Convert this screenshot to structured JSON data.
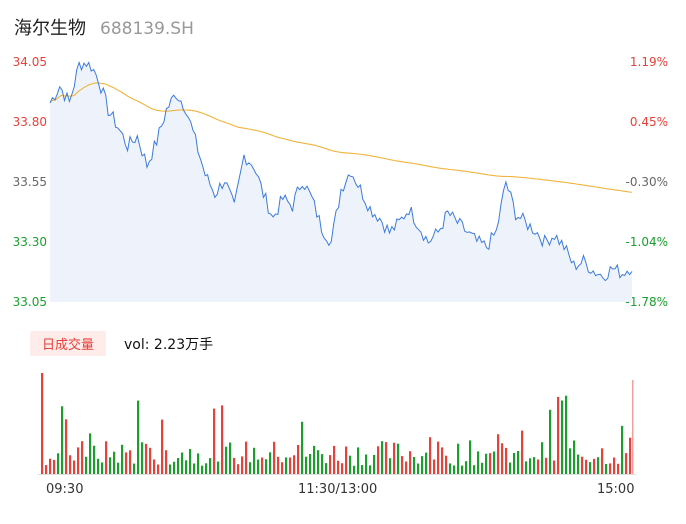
{
  "header": {
    "name": "海尔生物",
    "code": "688139.SH"
  },
  "colors": {
    "up": "#e8413a",
    "down": "#19a02c",
    "price_line": "#3b7bdc",
    "avg_line": "#f0b43c",
    "area_fill": "#eef3fb"
  },
  "volume": {
    "tab_label": "日成交量",
    "summary": "vol: 2.23万手"
  },
  "chart_data": {
    "type": "line",
    "prev_close": 33.64,
    "ylim": [
      33.05,
      34.05
    ],
    "y_ticks_left": [
      "34.05",
      "33.80",
      "33.55",
      "33.30",
      "33.05"
    ],
    "y_ticks_right": [
      "1.19%",
      "0.45%",
      "-0.30%",
      "-1.04%",
      "-1.78%"
    ],
    "x_ticks": [
      "09:30",
      "11:30/13:00",
      "15:00"
    ],
    "price_keypoints": [
      [
        0,
        33.88
      ],
      [
        2,
        33.95
      ],
      [
        4,
        33.88
      ],
      [
        6,
        34.04
      ],
      [
        8,
        34.05
      ],
      [
        10,
        33.98
      ],
      [
        12,
        33.85
      ],
      [
        14,
        33.78
      ],
      [
        16,
        33.7
      ],
      [
        18,
        33.74
      ],
      [
        20,
        33.62
      ],
      [
        22,
        33.72
      ],
      [
        24,
        33.85
      ],
      [
        26,
        33.92
      ],
      [
        28,
        33.86
      ],
      [
        30,
        33.72
      ],
      [
        32,
        33.58
      ],
      [
        34,
        33.5
      ],
      [
        36,
        33.56
      ],
      [
        38,
        33.44
      ],
      [
        40,
        33.66
      ],
      [
        42,
        33.62
      ],
      [
        44,
        33.5
      ],
      [
        46,
        33.4
      ],
      [
        48,
        33.48
      ],
      [
        50,
        33.45
      ],
      [
        52,
        33.56
      ],
      [
        54,
        33.48
      ],
      [
        56,
        33.36
      ],
      [
        58,
        33.3
      ],
      [
        60,
        33.52
      ],
      [
        62,
        33.6
      ],
      [
        64,
        33.52
      ],
      [
        66,
        33.44
      ],
      [
        68,
        33.4
      ],
      [
        70,
        33.34
      ],
      [
        72,
        33.38
      ],
      [
        74,
        33.44
      ],
      [
        76,
        33.37
      ],
      [
        78,
        33.3
      ],
      [
        80,
        33.34
      ],
      [
        82,
        33.42
      ],
      [
        84,
        33.38
      ],
      [
        86,
        33.34
      ],
      [
        88,
        33.3
      ],
      [
        90,
        33.28
      ],
      [
        92,
        33.34
      ],
      [
        94,
        33.55
      ],
      [
        96,
        33.42
      ],
      [
        98,
        33.38
      ],
      [
        100,
        33.35
      ],
      [
        102,
        33.3
      ],
      [
        104,
        33.33
      ],
      [
        106,
        33.28
      ],
      [
        108,
        33.2
      ],
      [
        110,
        33.22
      ],
      [
        112,
        33.18
      ],
      [
        114,
        33.16
      ],
      [
        116,
        33.19
      ],
      [
        118,
        33.17
      ],
      [
        120,
        33.2
      ]
    ]
  }
}
